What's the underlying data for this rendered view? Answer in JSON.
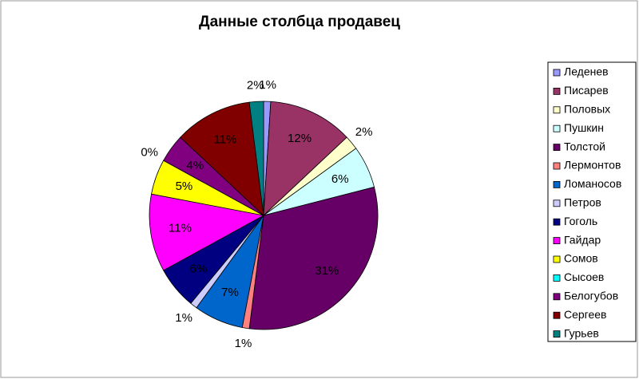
{
  "chart_data": {
    "type": "pie",
    "title": "Данные столбца продавец",
    "categories": [
      "Леденев",
      "Писарев",
      "Половых",
      "Пушкин",
      "Толстой",
      "Лермонтов",
      "Ломаносов",
      "Петров",
      "Гоголь",
      "Гайдар",
      "Сомов",
      "Сысоев",
      "Белогубов",
      "Сергеев",
      "Гурьев"
    ],
    "values": [
      1,
      12,
      2,
      6,
      31,
      1,
      7,
      1,
      6,
      11,
      5,
      0,
      4,
      11,
      2
    ],
    "value_labels": [
      "1%",
      "12%",
      "2%",
      "6%",
      "31%",
      "1%",
      "7%",
      "1%",
      "6%",
      "11%",
      "5%",
      "0%",
      "4%",
      "11%",
      "2%"
    ],
    "colors": [
      "#9999ff",
      "#993366",
      "#ffffcc",
      "#ccffff",
      "#660066",
      "#ff8080",
      "#0066cc",
      "#ccccff",
      "#000080",
      "#ff00ff",
      "#ffff00",
      "#00ffff",
      "#800080",
      "#800000",
      "#008080"
    ],
    "legend": "right"
  }
}
